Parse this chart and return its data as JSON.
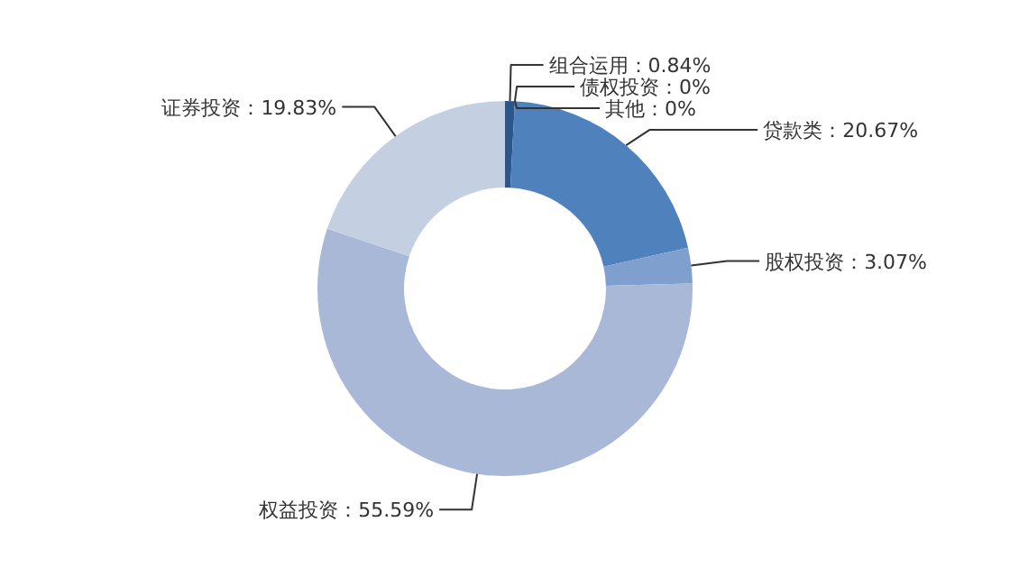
{
  "chart_data": {
    "type": "donut",
    "categories": [
      "组合运用",
      "债权投资",
      "其他",
      "贷款类",
      "股权投资",
      "权益投资",
      "证券投资"
    ],
    "values": [
      0.84,
      0,
      0,
      20.67,
      3.07,
      55.59,
      19.83
    ],
    "colors": [
      "#2c5588",
      "#3a66a0",
      "#4470aa",
      "#4f81bd",
      "#7f9fcf",
      "#a9b8d6",
      "#c4cfe2"
    ],
    "value_labels": [
      "0.84%",
      "0%",
      "0%",
      "20.67%",
      "3.07%",
      "55.59%",
      "19.83%"
    ]
  }
}
